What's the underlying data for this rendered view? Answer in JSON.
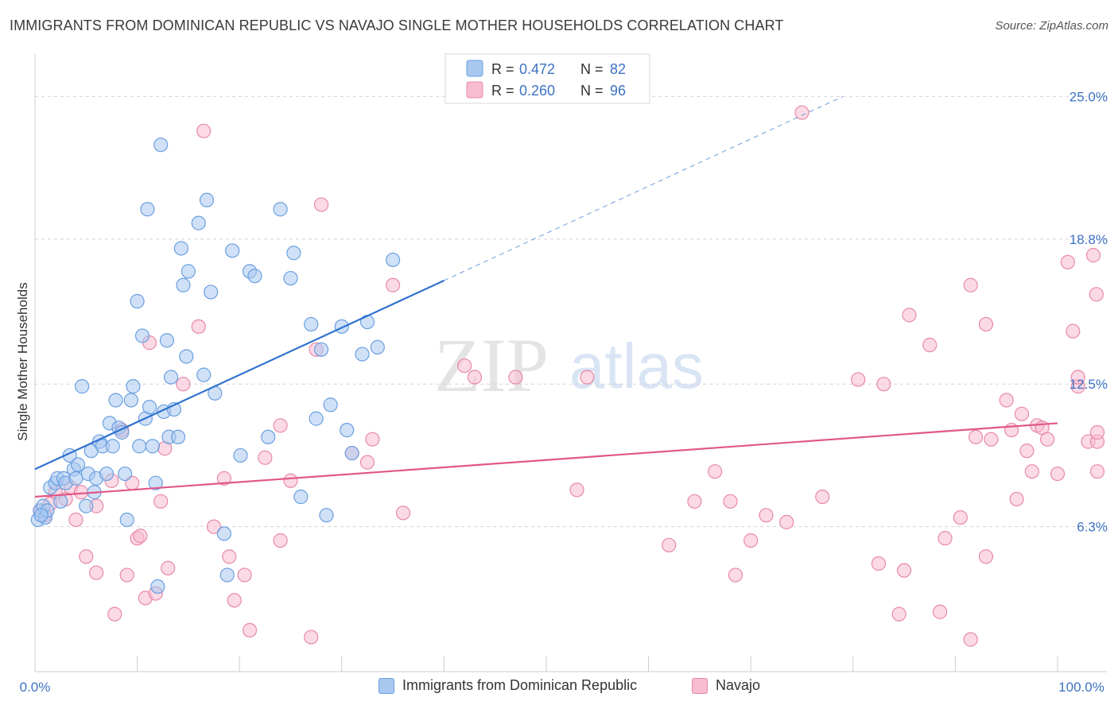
{
  "header": {
    "title": "IMMIGRANTS FROM DOMINICAN REPUBLIC VS NAVAJO SINGLE MOTHER HOUSEHOLDS CORRELATION CHART",
    "source": "Source: ZipAtlas.com"
  },
  "watermark": {
    "zip": "ZIP",
    "atlas": "atlas"
  },
  "legend": {
    "r_label": "R =",
    "n_label": "N =",
    "items": [
      {
        "r": "0.472",
        "n": "82"
      },
      {
        "r": "0.260",
        "n": "96"
      }
    ]
  },
  "colors": {
    "blue_fill": "#a9c8f0",
    "blue_stroke": "#6a9fe0",
    "blue_line": "#2f72cf",
    "pink_fill": "#f7bcd0",
    "pink_stroke": "#e889a8",
    "pink_line": "#e0578a",
    "value_text": "#3d72c4",
    "grid": "#d5d5d5"
  },
  "chart_data": {
    "type": "scatter",
    "xlabel": "",
    "ylabel": "Single Mother Households",
    "xlim": [
      0,
      100
    ],
    "ylim": [
      0,
      26.5
    ],
    "x_tick_labels": [
      "0.0%",
      "100.0%"
    ],
    "y_ticks": [
      6.3,
      12.5,
      18.8,
      25.0
    ],
    "y_tick_labels": [
      "6.3%",
      "12.5%",
      "18.8%",
      "25.0%"
    ],
    "grid": true,
    "legend_position": "top-center",
    "series": [
      {
        "name": "Immigrants from Dominican Republic",
        "r": 0.472,
        "n": 82,
        "trend": {
          "x0": 0,
          "y0": 8.8,
          "x1": 40,
          "y1": 17.0,
          "dash_to_x": 79,
          "dash_to_y": 25.0
        },
        "points": [
          [
            0.3,
            6.6
          ],
          [
            0.5,
            7.0
          ],
          [
            0.8,
            7.2
          ],
          [
            1.0,
            6.7
          ],
          [
            1.2,
            7.0
          ],
          [
            0.6,
            6.8
          ],
          [
            1.5,
            8.0
          ],
          [
            2.0,
            8.2
          ],
          [
            2.2,
            8.4
          ],
          [
            2.5,
            7.4
          ],
          [
            2.8,
            8.4
          ],
          [
            3.0,
            8.2
          ],
          [
            3.4,
            9.4
          ],
          [
            3.8,
            8.8
          ],
          [
            4.0,
            8.4
          ],
          [
            4.2,
            9.0
          ],
          [
            4.6,
            12.4
          ],
          [
            5.0,
            7.2
          ],
          [
            5.2,
            8.6
          ],
          [
            5.5,
            9.6
          ],
          [
            5.8,
            7.8
          ],
          [
            6.0,
            8.4
          ],
          [
            6.3,
            10.0
          ],
          [
            6.6,
            9.8
          ],
          [
            7.0,
            8.6
          ],
          [
            7.3,
            10.8
          ],
          [
            7.6,
            9.8
          ],
          [
            7.9,
            11.8
          ],
          [
            8.2,
            10.6
          ],
          [
            8.5,
            10.4
          ],
          [
            8.8,
            8.6
          ],
          [
            9.0,
            6.6
          ],
          [
            9.4,
            11.8
          ],
          [
            9.6,
            12.4
          ],
          [
            10.0,
            16.1
          ],
          [
            10.2,
            9.8
          ],
          [
            10.5,
            14.6
          ],
          [
            10.8,
            11.0
          ],
          [
            11.0,
            20.1
          ],
          [
            11.2,
            11.5
          ],
          [
            11.5,
            9.8
          ],
          [
            11.8,
            8.2
          ],
          [
            12.0,
            3.7
          ],
          [
            12.3,
            22.9
          ],
          [
            12.6,
            11.3
          ],
          [
            12.9,
            14.4
          ],
          [
            13.1,
            10.2
          ],
          [
            13.3,
            12.8
          ],
          [
            13.6,
            11.4
          ],
          [
            14.0,
            10.2
          ],
          [
            14.3,
            18.4
          ],
          [
            14.5,
            16.8
          ],
          [
            14.8,
            13.7
          ],
          [
            15.0,
            17.4
          ],
          [
            16.0,
            19.5
          ],
          [
            16.5,
            12.9
          ],
          [
            16.8,
            20.5
          ],
          [
            17.2,
            16.5
          ],
          [
            17.6,
            12.1
          ],
          [
            18.5,
            6.0
          ],
          [
            18.8,
            4.2
          ],
          [
            19.3,
            18.3
          ],
          [
            20.1,
            9.4
          ],
          [
            21.0,
            17.4
          ],
          [
            21.5,
            17.2
          ],
          [
            22.8,
            10.2
          ],
          [
            24.0,
            20.1
          ],
          [
            25.0,
            17.1
          ],
          [
            25.3,
            18.2
          ],
          [
            26.0,
            7.6
          ],
          [
            27.0,
            15.1
          ],
          [
            27.5,
            11.0
          ],
          [
            28.0,
            14.0
          ],
          [
            28.5,
            6.8
          ],
          [
            28.9,
            11.6
          ],
          [
            30.0,
            15.0
          ],
          [
            31.0,
            9.5
          ],
          [
            32.0,
            13.8
          ],
          [
            32.5,
            15.2
          ],
          [
            33.5,
            14.1
          ],
          [
            35.0,
            17.9
          ],
          [
            30.5,
            10.5
          ]
        ]
      },
      {
        "name": "Navajo",
        "r": 0.26,
        "n": 96,
        "trend": {
          "x0": 0,
          "y0": 7.6,
          "x1": 100,
          "y1": 10.8
        },
        "points": [
          [
            0.5,
            7.0
          ],
          [
            1.0,
            6.8
          ],
          [
            1.5,
            7.3
          ],
          [
            2.0,
            7.8
          ],
          [
            3.0,
            7.5
          ],
          [
            3.5,
            8.0
          ],
          [
            4.0,
            6.6
          ],
          [
            4.5,
            7.8
          ],
          [
            5.0,
            5.0
          ],
          [
            6.0,
            7.2
          ],
          [
            6.0,
            4.3
          ],
          [
            7.5,
            8.3
          ],
          [
            7.8,
            2.5
          ],
          [
            8.5,
            10.5
          ],
          [
            9.0,
            4.2
          ],
          [
            9.5,
            8.2
          ],
          [
            10.0,
            5.8
          ],
          [
            10.3,
            5.9
          ],
          [
            10.8,
            3.2
          ],
          [
            11.2,
            14.3
          ],
          [
            11.8,
            3.4
          ],
          [
            12.3,
            7.4
          ],
          [
            12.7,
            9.7
          ],
          [
            13.0,
            4.5
          ],
          [
            14.5,
            12.5
          ],
          [
            16.0,
            15.0
          ],
          [
            16.5,
            23.5
          ],
          [
            17.5,
            6.3
          ],
          [
            18.5,
            8.4
          ],
          [
            19.0,
            5.0
          ],
          [
            19.5,
            3.1
          ],
          [
            20.5,
            4.2
          ],
          [
            21.0,
            1.8
          ],
          [
            22.5,
            9.3
          ],
          [
            24.0,
            10.7
          ],
          [
            24.0,
            5.7
          ],
          [
            25.0,
            8.3
          ],
          [
            27.0,
            1.5
          ],
          [
            27.5,
            14.0
          ],
          [
            28.0,
            20.3
          ],
          [
            31.0,
            9.5
          ],
          [
            32.5,
            9.1
          ],
          [
            33.0,
            10.1
          ],
          [
            35.0,
            16.8
          ],
          [
            36.0,
            6.9
          ],
          [
            42.0,
            13.3
          ],
          [
            43.0,
            12.8
          ],
          [
            47.0,
            12.8
          ],
          [
            53.0,
            7.9
          ],
          [
            54.0,
            12.8
          ],
          [
            62.0,
            5.5
          ],
          [
            64.5,
            7.4
          ],
          [
            66.5,
            8.7
          ],
          [
            68.0,
            7.4
          ],
          [
            68.5,
            4.2
          ],
          [
            70.0,
            5.7
          ],
          [
            71.5,
            6.8
          ],
          [
            73.5,
            6.5
          ],
          [
            75.0,
            24.3
          ],
          [
            77.0,
            7.6
          ],
          [
            80.5,
            12.7
          ],
          [
            82.5,
            4.7
          ],
          [
            83.0,
            12.5
          ],
          [
            84.5,
            2.5
          ],
          [
            85.0,
            4.4
          ],
          [
            85.5,
            15.5
          ],
          [
            87.5,
            14.2
          ],
          [
            88.5,
            2.6
          ],
          [
            89.0,
            5.8
          ],
          [
            90.5,
            6.7
          ],
          [
            91.5,
            16.8
          ],
          [
            91.5,
            1.4
          ],
          [
            92.0,
            10.2
          ],
          [
            93.0,
            15.1
          ],
          [
            93.0,
            5.0
          ],
          [
            93.5,
            10.1
          ],
          [
            95.0,
            11.8
          ],
          [
            95.5,
            10.5
          ],
          [
            96.0,
            7.5
          ],
          [
            96.5,
            11.2
          ],
          [
            97.0,
            9.6
          ],
          [
            97.5,
            8.7
          ],
          [
            98.0,
            10.7
          ],
          [
            98.5,
            10.6
          ],
          [
            99.0,
            10.1
          ],
          [
            100.0,
            8.6
          ],
          [
            101.0,
            17.8
          ],
          [
            101.5,
            14.8
          ],
          [
            102.0,
            12.4
          ],
          [
            102.0,
            12.8
          ],
          [
            103.0,
            10.0
          ],
          [
            103.5,
            18.1
          ],
          [
            103.8,
            16.4
          ],
          [
            104.0,
            10.0
          ],
          [
            104.5,
            10.4
          ],
          [
            105.0,
            8.7
          ]
        ]
      }
    ]
  },
  "bottom_legend": {
    "items": [
      {
        "label": "Immigrants from Dominican Republic"
      },
      {
        "label": "Navajo"
      }
    ]
  }
}
